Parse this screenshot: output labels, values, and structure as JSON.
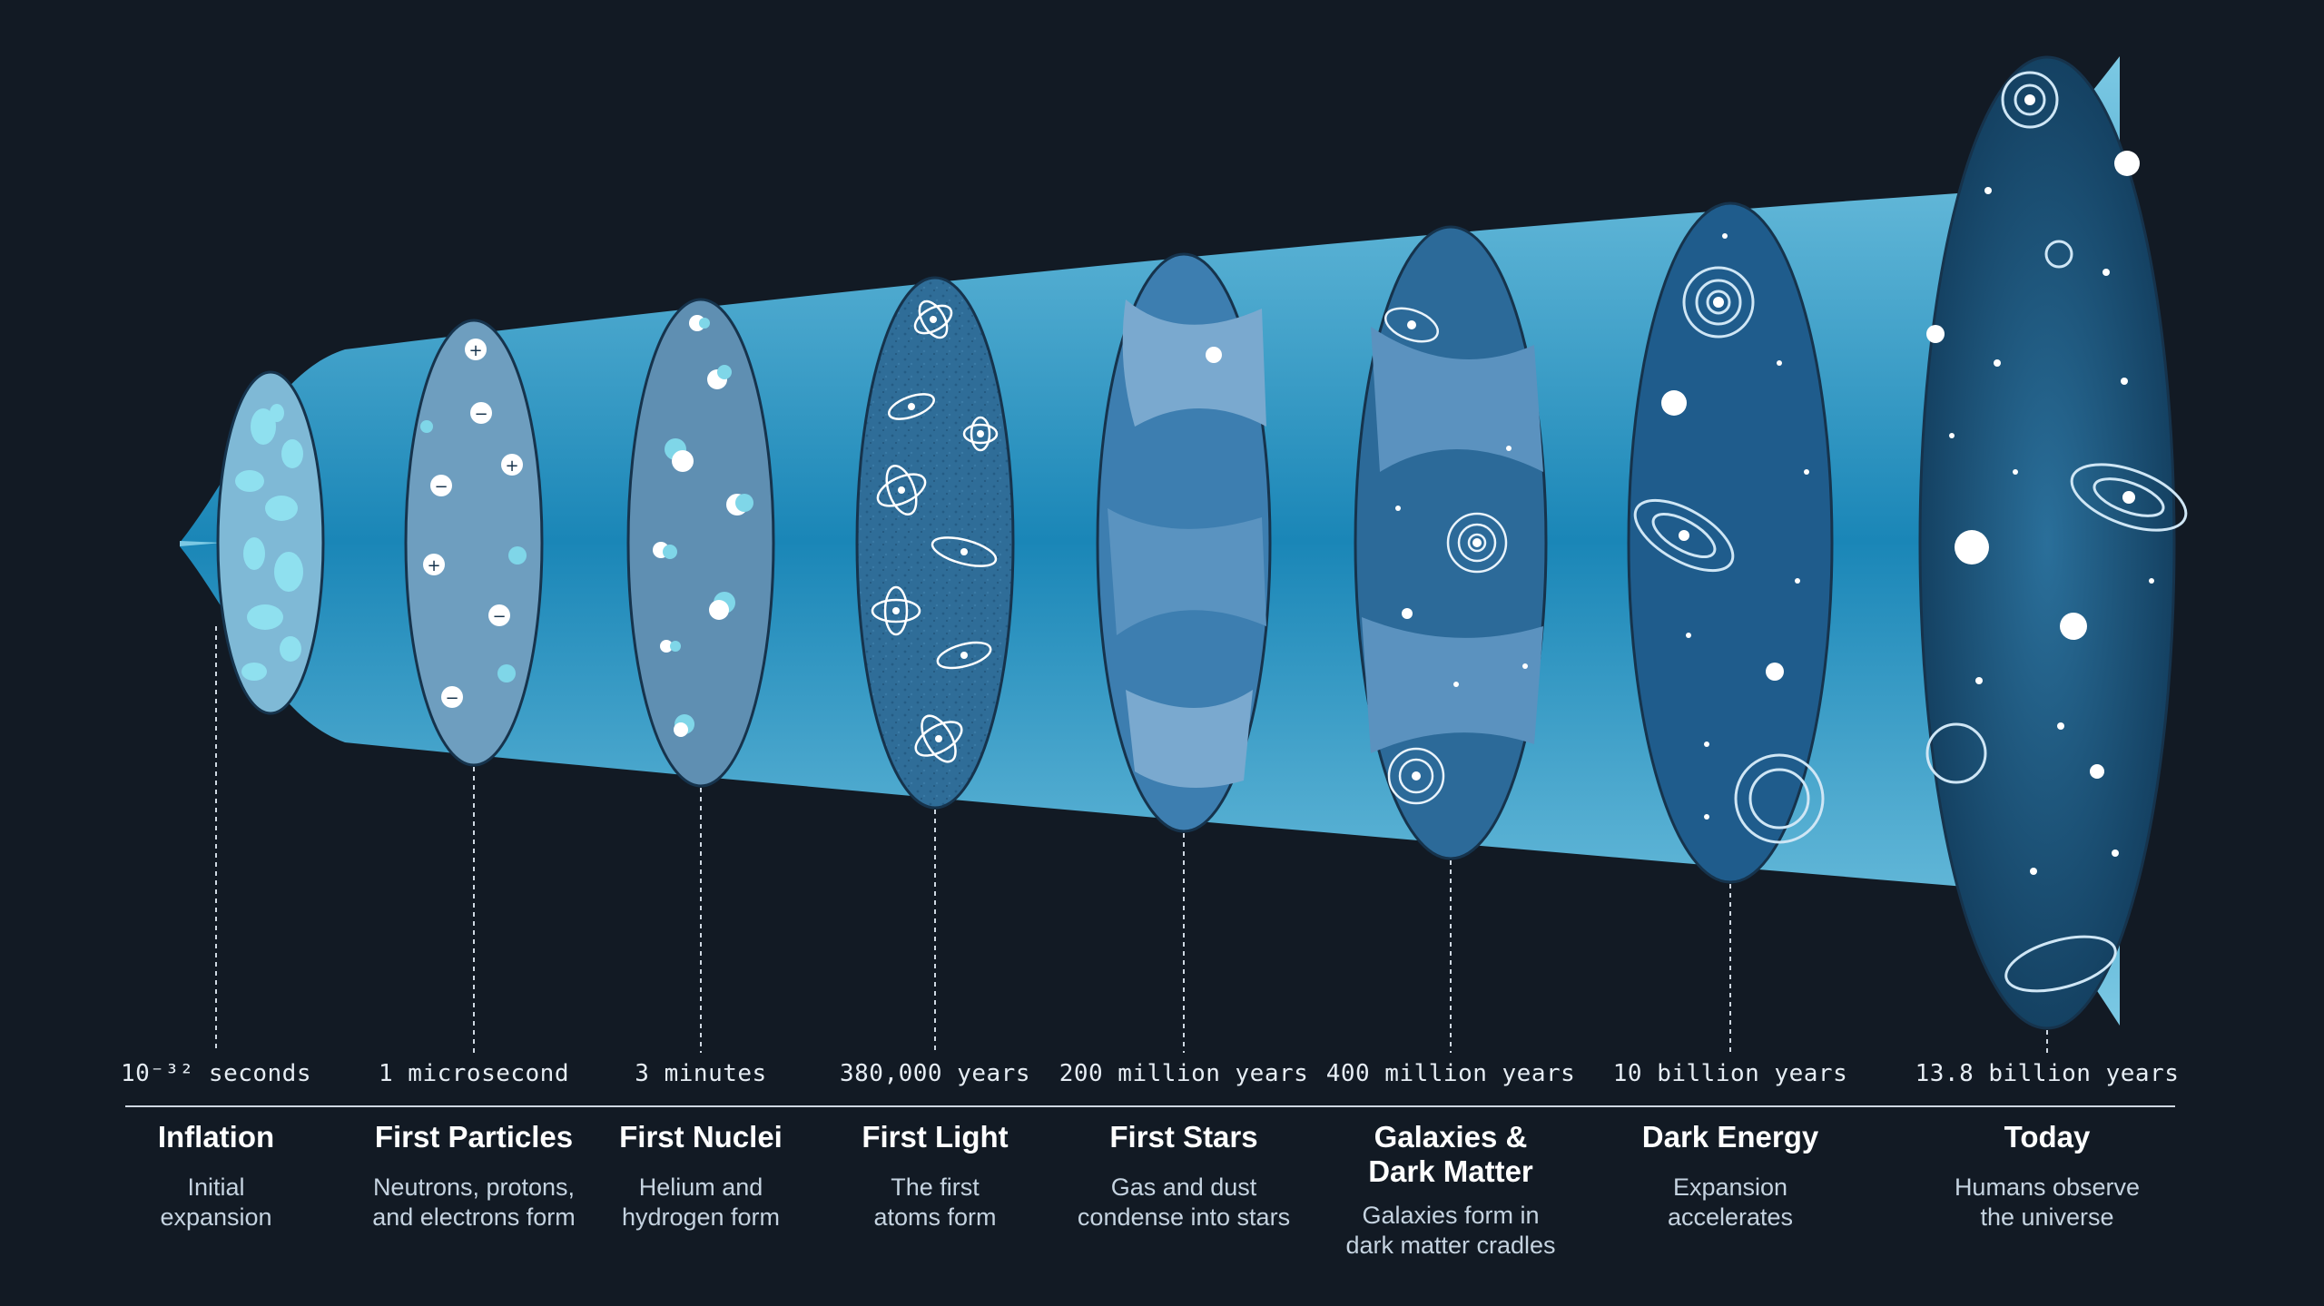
{
  "colors": {
    "background": "#121a24",
    "cone_outer": "#7cc9e4",
    "cone_inner": "#1f88b8",
    "text_primary": "#ffffff",
    "text_secondary": "#c5d3e0"
  },
  "eras": [
    {
      "time": "10⁻³² seconds",
      "title": "Inflation",
      "desc_1": "Initial",
      "desc_2": "expansion"
    },
    {
      "time": "1 microsecond",
      "title": "First Particles",
      "desc_1": "Neutrons, protons,",
      "desc_2": "and electrons form"
    },
    {
      "time": "3 minutes",
      "title": "First Nuclei",
      "desc_1": "Helium and",
      "desc_2": "hydrogen form"
    },
    {
      "time": "380,000 years",
      "title": "First Light",
      "desc_1": "The first",
      "desc_2": "atoms form"
    },
    {
      "time": "200 million years",
      "title": "First Stars",
      "desc_1": "Gas and dust",
      "desc_2": "condense into stars"
    },
    {
      "time": "400 million years",
      "title_1": "Galaxies &",
      "title_2": "Dark Matter",
      "desc_1": "Galaxies form in",
      "desc_2": "dark matter cradles"
    },
    {
      "time": "10 billion years",
      "title": "Dark Energy",
      "desc_1": "Expansion",
      "desc_2": "accelerates"
    },
    {
      "time": "13.8 billion years",
      "title": "Today",
      "desc_1": "Humans observe",
      "desc_2": "the universe"
    }
  ]
}
